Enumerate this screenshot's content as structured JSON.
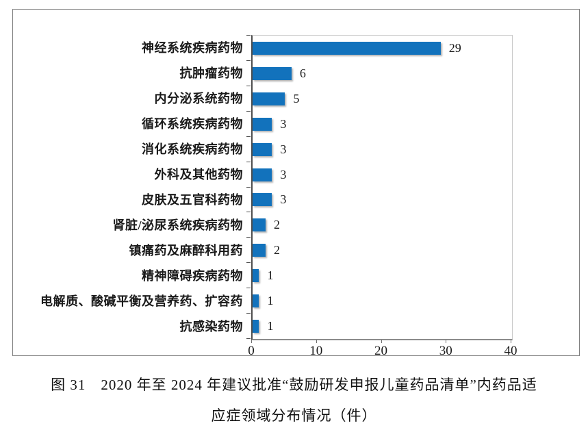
{
  "chart_data": {
    "type": "bar",
    "orientation": "horizontal",
    "title": "",
    "xlabel": "",
    "ylabel": "",
    "categories": [
      "神经系统疾病药物",
      "抗肿瘤药物",
      "内分泌系统药物",
      "循环系统疾病药物",
      "消化系统疾病药物",
      "外科及其他药物",
      "皮肤及五官科药物",
      "肾脏/泌尿系统疾病药物",
      "镇痛药及麻醉科用药",
      "精神障碍疾病药物",
      "电解质、酸碱平衡及营养药、扩容药",
      "抗感染药物"
    ],
    "values": [
      29,
      6,
      5,
      3,
      3,
      3,
      3,
      2,
      2,
      1,
      1,
      1
    ],
    "data_labels": [
      "29",
      "6",
      "5",
      "3",
      "3",
      "3",
      "3",
      "2",
      "2",
      "1",
      "1",
      "1"
    ],
    "xlim": [
      0,
      40
    ],
    "x_ticks": [
      "0",
      "10",
      "20",
      "30",
      "40"
    ],
    "grid": false,
    "legend": "none",
    "bar_color": "#1272bc"
  },
  "caption": {
    "line1": "图 31　2020 年至 2024 年建议批准“鼓励研发申报儿童药品清单”内药品适",
    "line2": "应症领域分布情况（件）"
  }
}
